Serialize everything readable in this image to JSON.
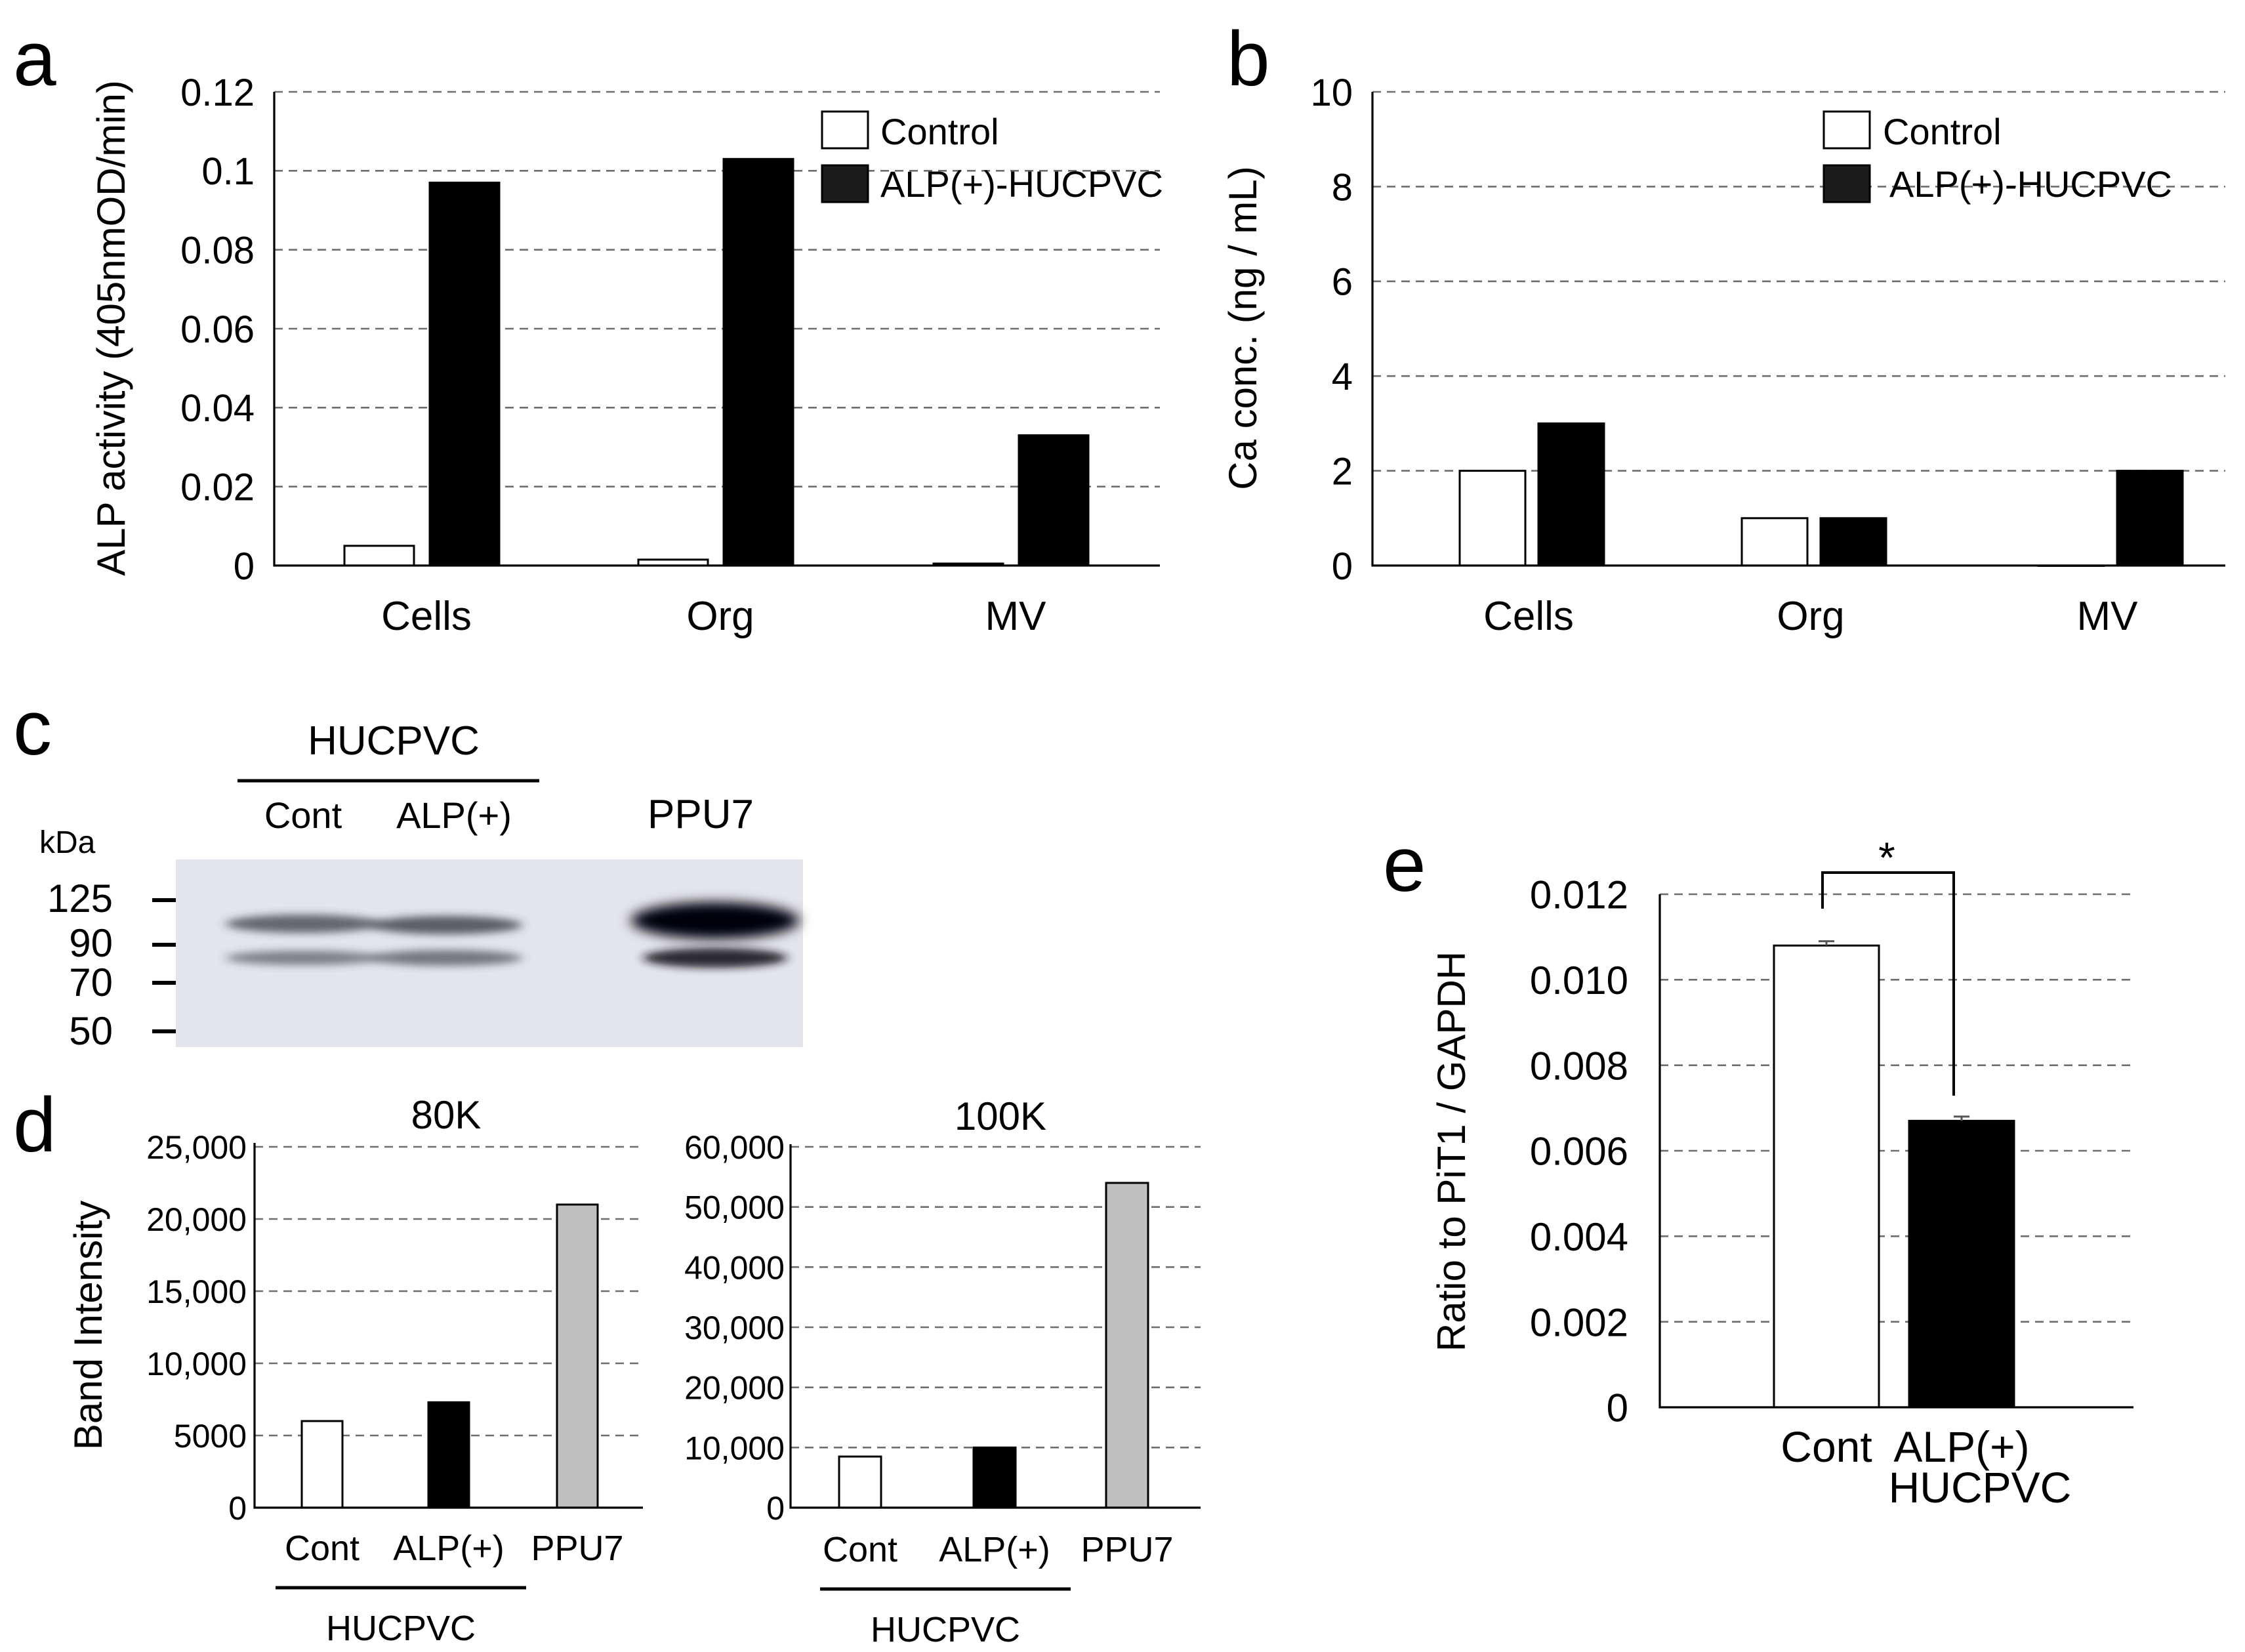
{
  "panels": {
    "a": {
      "letter": "a"
    },
    "b": {
      "letter": "b"
    },
    "c": {
      "letter": "c"
    },
    "d": {
      "letter": "d"
    },
    "e": {
      "letter": "e"
    }
  },
  "colors": {
    "control": "#ffffff",
    "alp": "#000000",
    "ppu7": "#c0c0c0",
    "blot_bg": "#e4e4ec",
    "gridline": "#6e6e6e"
  },
  "blot": {
    "group_label": "HUCPVC",
    "lanes": [
      "Cont",
      "ALP(+)",
      "PPU7"
    ],
    "kda_label": "kDa",
    "markers": [
      "125",
      "90",
      "70",
      "50"
    ]
  },
  "chart_data": [
    {
      "id": "a",
      "type": "bar",
      "title": "",
      "xlabel": "",
      "ylabel": "ALP activity (405nmOD/min)",
      "categories": [
        "Cells",
        "Org",
        "MV"
      ],
      "yticks": [
        "0",
        "0.02",
        "0.04",
        "0.06",
        "0.08",
        "0.1",
        "0.12"
      ],
      "ylim": [
        0,
        0.12
      ],
      "grid": true,
      "legend": "top-right",
      "series": [
        {
          "name": "Control",
          "color": "#ffffff",
          "values": [
            0.005,
            0.0015,
            0.0005
          ]
        },
        {
          "name": "ALP(+)-HUCPVC",
          "color": "#000000",
          "values": [
            0.097,
            0.103,
            0.033
          ]
        }
      ]
    },
    {
      "id": "b",
      "type": "bar",
      "title": "",
      "xlabel": "",
      "ylabel": "Ca conc. (ng / mL)",
      "categories": [
        "Cells",
        "Org",
        "MV"
      ],
      "yticks": [
        "0",
        "2",
        "4",
        "6",
        "8",
        "10"
      ],
      "ylim": [
        0,
        10
      ],
      "grid": true,
      "legend": "top-right",
      "series": [
        {
          "name": "Control",
          "color": "#ffffff",
          "values": [
            2,
            1,
            0
          ]
        },
        {
          "name": "ALP(+)-HUCPVC",
          "color": "#000000",
          "values": [
            3,
            1,
            2
          ]
        }
      ]
    },
    {
      "id": "d80",
      "type": "bar",
      "title": "80K",
      "xlabel": "HUCPVC",
      "ylabel": "Band Intensity",
      "categories": [
        "Cont",
        "ALP(+)",
        "PPU7"
      ],
      "yticks": [
        "0",
        "5000",
        "10,000",
        "15,000",
        "20,000",
        "25,000"
      ],
      "ylim": [
        0,
        25000
      ],
      "grid": true,
      "values": [
        6000,
        7300,
        21000
      ],
      "colors": [
        "#ffffff",
        "#000000",
        "#c0c0c0"
      ]
    },
    {
      "id": "d100",
      "type": "bar",
      "title": "100K",
      "xlabel": "HUCPVC",
      "ylabel": "",
      "categories": [
        "Cont",
        "ALP(+)",
        "PPU7"
      ],
      "yticks": [
        "0",
        "10,000",
        "20,000",
        "30,000",
        "40,000",
        "50,000",
        "60,000"
      ],
      "ylim": [
        0,
        60000
      ],
      "grid": true,
      "values": [
        8500,
        10000,
        54000
      ],
      "colors": [
        "#ffffff",
        "#000000",
        "#c0c0c0"
      ]
    },
    {
      "id": "e",
      "type": "bar",
      "title": "",
      "xlabel": "",
      "ylabel": "Ratio to PiT1 / GAPDH",
      "categories": [
        "Cont",
        "ALP(+)"
      ],
      "category_sublabel": "HUCPVC",
      "yticks": [
        "0",
        "0.002",
        "0.004",
        "0.006",
        "0.008",
        "0.010",
        "0.012"
      ],
      "ylim": [
        0,
        0.012
      ],
      "grid": true,
      "values": [
        0.0108,
        0.0067
      ],
      "errors": [
        0.0001,
        0.0001
      ],
      "colors": [
        "#ffffff",
        "#000000"
      ],
      "significance": "*"
    }
  ]
}
